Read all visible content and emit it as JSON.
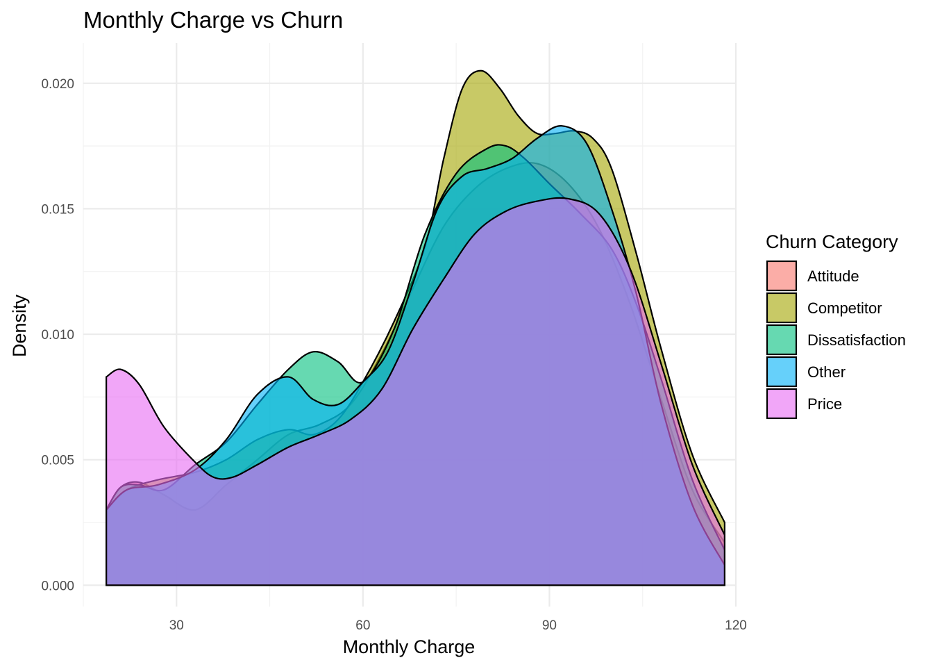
{
  "chart_data": {
    "type": "area",
    "subtype": "density",
    "title": "Monthly Charge vs Churn",
    "xlabel": "Monthly Charge",
    "ylabel": "Density",
    "xlim": [
      15,
      120
    ],
    "ylim": [
      -0.00085,
      0.0216
    ],
    "x_ticks": [
      30,
      60,
      90,
      120
    ],
    "y_ticks": [
      0.0,
      0.005,
      0.01,
      0.015,
      0.02
    ],
    "y_tick_labels": [
      "0.000",
      "0.005",
      "0.010",
      "0.015",
      "0.020"
    ],
    "grid": true,
    "fill_alpha": 0.6,
    "legend": {
      "title": "Churn Category",
      "position": "right"
    },
    "series": [
      {
        "name": "Attitude",
        "color": "#F8766D",
        "x": [
          18.7,
          21,
          24,
          28,
          33,
          38,
          43,
          48,
          53,
          58,
          63,
          68,
          73,
          78,
          83,
          88,
          93,
          98,
          103,
          108,
          113,
          118.2
        ],
        "y": [
          0.003,
          0.0039,
          0.0041,
          0.0036,
          0.003,
          0.004,
          0.005,
          0.006,
          0.0064,
          0.0072,
          0.0092,
          0.0118,
          0.0143,
          0.0158,
          0.0166,
          0.0168,
          0.016,
          0.0142,
          0.0112,
          0.0074,
          0.0038,
          0.0017
        ]
      },
      {
        "name": "Competitor",
        "color": "#A3A500",
        "x": [
          18.7,
          22,
          27,
          33,
          38,
          43,
          48,
          52,
          56,
          60,
          65,
          70,
          73,
          76,
          79,
          82,
          85,
          88,
          91,
          94,
          97,
          100,
          104,
          108,
          113,
          118.2
        ],
        "y": [
          0.003,
          0.0038,
          0.0042,
          0.0045,
          0.005,
          0.0058,
          0.0062,
          0.006,
          0.0066,
          0.0081,
          0.0105,
          0.0135,
          0.017,
          0.0198,
          0.0205,
          0.0198,
          0.0187,
          0.018,
          0.018,
          0.0181,
          0.0178,
          0.0166,
          0.0132,
          0.0094,
          0.0052,
          0.0025
        ]
      },
      {
        "name": "Dissatisfaction",
        "color": "#00BF7D",
        "x": [
          18.7,
          21,
          24,
          28,
          33,
          38,
          43,
          48,
          52,
          56,
          60,
          65,
          70,
          75,
          80,
          83,
          86,
          90,
          95,
          100,
          104,
          108,
          113,
          118.2
        ],
        "y": [
          0.003,
          0.0039,
          0.004,
          0.0038,
          0.0048,
          0.0057,
          0.0072,
          0.0086,
          0.0093,
          0.0089,
          0.0081,
          0.0102,
          0.014,
          0.0164,
          0.0174,
          0.0175,
          0.017,
          0.016,
          0.0148,
          0.0134,
          0.0112,
          0.0082,
          0.0042,
          0.0014
        ]
      },
      {
        "name": "Other",
        "color": "#00B0F6",
        "x": [
          18.7,
          22,
          27,
          33,
          38,
          43,
          48,
          52,
          56,
          60,
          64,
          68,
          72,
          76,
          80,
          84,
          88,
          92,
          96,
          100,
          104,
          108,
          113,
          118.2
        ],
        "y": [
          0.003,
          0.0038,
          0.004,
          0.0046,
          0.0058,
          0.0076,
          0.0083,
          0.0074,
          0.0072,
          0.0081,
          0.0093,
          0.012,
          0.015,
          0.0163,
          0.0166,
          0.017,
          0.0178,
          0.0183,
          0.0176,
          0.015,
          0.0116,
          0.0072,
          0.0032,
          0.0008
        ]
      },
      {
        "name": "Price",
        "color": "#E76BF3",
        "x": [
          18.7,
          21,
          24,
          28,
          33,
          36,
          39,
          43,
          48,
          53,
          58,
          63,
          68,
          73,
          78,
          83,
          88,
          93,
          98,
          103,
          108,
          113,
          118.2
        ],
        "y": [
          0.0083,
          0.0086,
          0.008,
          0.0063,
          0.0049,
          0.0043,
          0.0043,
          0.0048,
          0.0055,
          0.006,
          0.0066,
          0.0078,
          0.0102,
          0.0122,
          0.014,
          0.0149,
          0.0153,
          0.0154,
          0.0148,
          0.0126,
          0.0088,
          0.0048,
          0.002
        ]
      }
    ]
  }
}
